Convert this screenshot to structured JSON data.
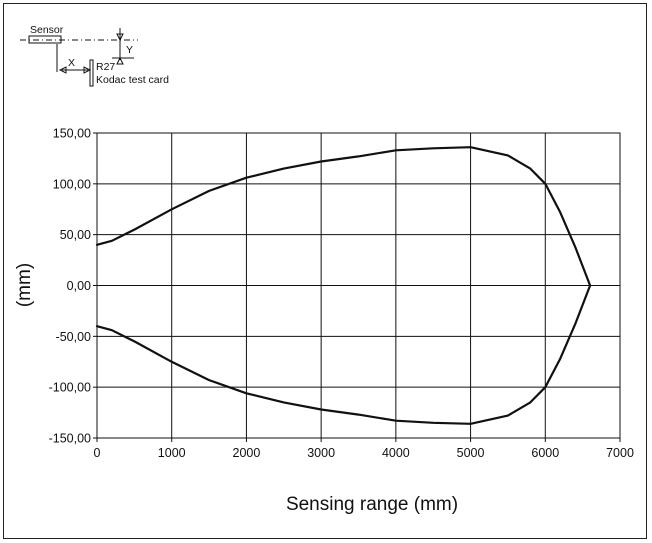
{
  "diagram": {
    "sensor_label": "Sensor",
    "x_label": "X",
    "y_label": "Y",
    "reflector_label": "R27",
    "card_label": "Kodac test card"
  },
  "chart_data": {
    "type": "line",
    "title": "",
    "xlabel": "Sensing range (mm)",
    "ylabel": "(mm)",
    "xlim": [
      0,
      7000
    ],
    "ylim": [
      -150,
      150
    ],
    "x_ticks": [
      0,
      1000,
      2000,
      3000,
      4000,
      5000,
      6000,
      7000
    ],
    "y_ticks": [
      150,
      100,
      50,
      0,
      -50,
      -100,
      -150
    ],
    "x_tick_labels": [
      "0",
      "1000",
      "2000",
      "3000",
      "4000",
      "5000",
      "6000",
      "7000"
    ],
    "y_tick_labels": [
      "150,00",
      "100,00",
      "50,00",
      "0,00",
      "-50,00",
      "-100,00",
      "-150,00"
    ],
    "grid": true,
    "series": [
      {
        "x": [
          0,
          200,
          500,
          1000,
          1500,
          2000,
          2500,
          3000,
          3500,
          4000,
          4500,
          5000,
          5500,
          5800,
          6000,
          6200,
          6400,
          6600
        ],
        "y": [
          40,
          44,
          55,
          75,
          93,
          106,
          115,
          122,
          127,
          133,
          135,
          136,
          128,
          115,
          100,
          72,
          38,
          0
        ]
      },
      {
        "x": [
          0,
          200,
          500,
          1000,
          1500,
          2000,
          2500,
          3000,
          3500,
          4000,
          4500,
          5000,
          5500,
          5800,
          6000,
          6200,
          6400,
          6600
        ],
        "y": [
          -40,
          -44,
          -55,
          -75,
          -93,
          -106,
          -115,
          -122,
          -127,
          -133,
          -135,
          -136,
          -128,
          -115,
          -100,
          -72,
          -38,
          0
        ]
      }
    ]
  }
}
